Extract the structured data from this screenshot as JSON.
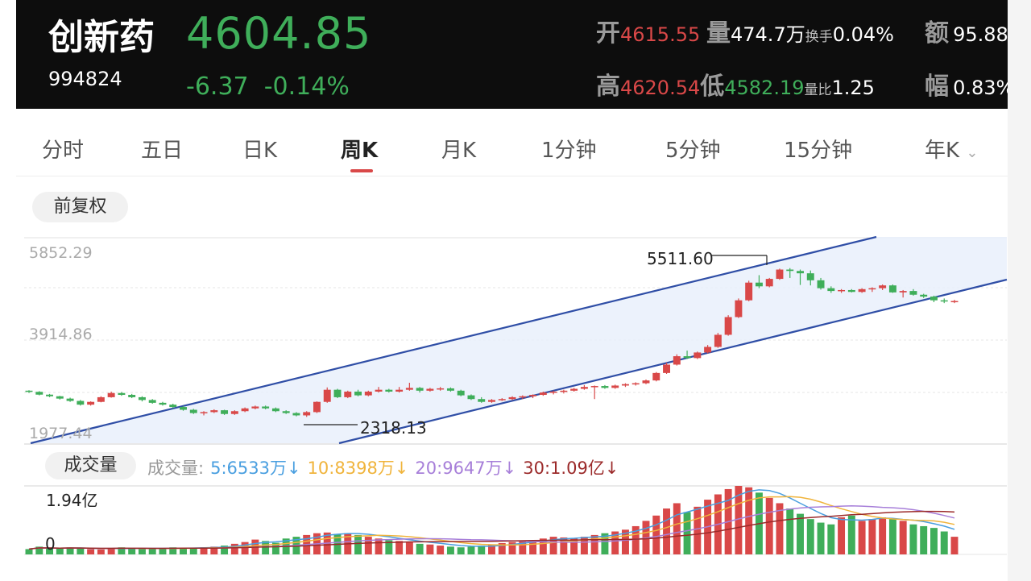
{
  "stock": {
    "name": "创新药",
    "code": "994824",
    "price": "4604.85",
    "change": "-6.37",
    "change_pct": "-0.14%"
  },
  "stats": {
    "open_label": "开",
    "open": "4615.55",
    "vol_label": "量",
    "vol": "474.7万",
    "turnover_label": "换手",
    "turnover": "0.04%",
    "amount_label": "额",
    "amount": "95.88",
    "high_label": "高",
    "high": "4620.54",
    "low_label": "低",
    "low": "4582.19",
    "vol_ratio_label": "量比",
    "vol_ratio": "1.25",
    "amplitude_label": "幅",
    "amplitude": "0.83%"
  },
  "tabs": [
    "分时",
    "五日",
    "日K",
    "周K",
    "月K",
    "1分钟",
    "5分钟",
    "15分钟",
    "年K"
  ],
  "active_tab": "周K",
  "adjust_button": "前复权",
  "volume_button": "成交量",
  "volume_legend": {
    "label": "成交量:",
    "ma5": "5:6533万↓",
    "ma10": "10:8398万↓",
    "ma20": "20:9647万↓",
    "ma30": "30:1.09亿↓"
  },
  "colors": {
    "up": "#d94848",
    "down": "#3fae5a",
    "channel": "#2f4ea6",
    "ma5": "#4a9fe0",
    "ma10": "#f0b43c",
    "ma20": "#a77fd9",
    "ma30": "#9b2a2a"
  },
  "chart_data": [
    {
      "type": "candlestick",
      "y_axis_labels": [
        "5852.29",
        "3914.86",
        "1977.44"
      ],
      "ylim": [
        1977.44,
        5852.29
      ],
      "annotations": [
        {
          "text": "5511.60",
          "kind": "period-high"
        },
        {
          "text": "2318.13",
          "kind": "period-low"
        }
      ],
      "overlay": "upward price channel (two parallel trend lines with shaded band)",
      "series": [
        {
          "name": "weekly",
          "ohlc_approx": [
            [
              2880,
              2890,
              2830,
              2855
            ],
            [
              2855,
              2870,
              2780,
              2795
            ],
            [
              2795,
              2810,
              2740,
              2760
            ],
            [
              2760,
              2770,
              2690,
              2710
            ],
            [
              2710,
              2730,
              2640,
              2660
            ],
            [
              2660,
              2680,
              2560,
              2580
            ],
            [
              2580,
              2650,
              2560,
              2640
            ],
            [
              2640,
              2760,
              2630,
              2740
            ],
            [
              2740,
              2860,
              2730,
              2830
            ],
            [
              2830,
              2850,
              2770,
              2790
            ],
            [
              2790,
              2810,
              2720,
              2740
            ],
            [
              2740,
              2760,
              2650,
              2680
            ],
            [
              2680,
              2700,
              2600,
              2620
            ],
            [
              2620,
              2640,
              2560,
              2580
            ],
            [
              2580,
              2600,
              2500,
              2530
            ],
            [
              2530,
              2550,
              2450,
              2470
            ],
            [
              2470,
              2490,
              2380,
              2400
            ],
            [
              2400,
              2440,
              2350,
              2420
            ],
            [
              2420,
              2480,
              2400,
              2460
            ],
            [
              2460,
              2470,
              2360,
              2380
            ],
            [
              2380,
              2460,
              2360,
              2440
            ],
            [
              2440,
              2520,
              2420,
              2500
            ],
            [
              2500,
              2560,
              2480,
              2540
            ],
            [
              2540,
              2560,
              2480,
              2500
            ],
            [
              2500,
              2520,
              2420,
              2440
            ],
            [
              2440,
              2460,
              2380,
              2400
            ],
            [
              2400,
              2420,
              2330,
              2350
            ],
            [
              2350,
              2440,
              2318,
              2420
            ],
            [
              2420,
              2650,
              2400,
              2640
            ],
            [
              2640,
              2950,
              2620,
              2900
            ],
            [
              2900,
              2920,
              2720,
              2740
            ],
            [
              2740,
              2880,
              2720,
              2860
            ],
            [
              2860,
              2900,
              2760,
              2780
            ],
            [
              2780,
              2880,
              2760,
              2860
            ],
            [
              2860,
              2960,
              2840,
              2900
            ],
            [
              2900,
              2920,
              2840,
              2860
            ],
            [
              2860,
              2960,
              2840,
              2900
            ],
            [
              2900,
              3050,
              2880,
              2940
            ],
            [
              2940,
              2960,
              2840,
              2880
            ],
            [
              2880,
              2940,
              2860,
              2920
            ],
            [
              2920,
              2960,
              2880,
              2930
            ],
            [
              2930,
              2950,
              2860,
              2880
            ],
            [
              2880,
              2900,
              2760,
              2780
            ],
            [
              2780,
              2800,
              2680,
              2700
            ],
            [
              2700,
              2740,
              2620,
              2640
            ],
            [
              2640,
              2700,
              2620,
              2680
            ],
            [
              2680,
              2720,
              2660,
              2700
            ],
            [
              2700,
              2760,
              2680,
              2740
            ],
            [
              2740,
              2780,
              2700,
              2760
            ],
            [
              2760,
              2800,
              2720,
              2790
            ],
            [
              2790,
              2860,
              2770,
              2840
            ],
            [
              2840,
              2880,
              2800,
              2860
            ],
            [
              2860,
              2900,
              2820,
              2880
            ],
            [
              2880,
              2940,
              2860,
              2920
            ],
            [
              2920,
              3000,
              2900,
              2960
            ],
            [
              2960,
              2990,
              2700,
              2980
            ],
            [
              2980,
              3000,
              2920,
              2940
            ],
            [
              2940,
              3010,
              2920,
              2990
            ],
            [
              2990,
              3040,
              2960,
              3020
            ],
            [
              3020,
              3060,
              2990,
              3040
            ],
            [
              3040,
              3120,
              3020,
              3100
            ],
            [
              3100,
              3280,
              3080,
              3260
            ],
            [
              3260,
              3480,
              3240,
              3440
            ],
            [
              3440,
              3660,
              3420,
              3620
            ],
            [
              3620,
              3740,
              3560,
              3580
            ],
            [
              3580,
              3720,
              3560,
              3700
            ],
            [
              3700,
              3860,
              3680,
              3820
            ],
            [
              3820,
              4120,
              3800,
              4080
            ],
            [
              4080,
              4500,
              4060,
              4460
            ],
            [
              4460,
              4860,
              4440,
              4820
            ],
            [
              4820,
              5240,
              4800,
              5200
            ],
            [
              5200,
              5360,
              5080,
              5120
            ],
            [
              5120,
              5300,
              5100,
              5280
            ],
            [
              5280,
              5500,
              5260,
              5480
            ],
            [
              5480,
              5511.6,
              5300,
              5450
            ],
            [
              5450,
              5480,
              5150,
              5400
            ],
            [
              5400,
              5460,
              5140,
              5250
            ],
            [
              5250,
              5300,
              5050,
              5080
            ],
            [
              5080,
              5120,
              4980,
              5020
            ],
            [
              5020,
              5060,
              4980,
              5040
            ],
            [
              5040,
              5060,
              4990,
              5000
            ],
            [
              5000,
              5080,
              4980,
              5060
            ],
            [
              5060,
              5100,
              5000,
              5080
            ],
            [
              5080,
              5160,
              5040,
              5140
            ],
            [
              5140,
              5160,
              4980,
              4990
            ],
            [
              4990,
              5040,
              4880,
              5020
            ],
            [
              5020,
              5060,
              4920,
              4940
            ],
            [
              4940,
              4960,
              4870,
              4900
            ],
            [
              4900,
              4920,
              4780,
              4820
            ],
            [
              4820,
              4860,
              4760,
              4800
            ],
            [
              4800,
              4830,
              4760,
              4805
            ]
          ]
        }
      ]
    },
    {
      "type": "bar",
      "title": "成交量",
      "y_axis_labels": [
        "1.94亿",
        "0"
      ],
      "ylim": [
        0,
        1.94
      ],
      "unit": "亿",
      "series": [
        {
          "name": "volume",
          "values_approx": [
            0.15,
            0.22,
            0.18,
            0.16,
            0.2,
            0.17,
            0.15,
            0.14,
            0.18,
            0.2,
            0.17,
            0.15,
            0.16,
            0.18,
            0.2,
            0.19,
            0.17,
            0.2,
            0.22,
            0.25,
            0.3,
            0.35,
            0.42,
            0.38,
            0.33,
            0.45,
            0.5,
            0.55,
            0.6,
            0.62,
            0.58,
            0.6,
            0.55,
            0.5,
            0.45,
            0.4,
            0.38,
            0.35,
            0.3,
            0.28,
            0.25,
            0.22,
            0.2,
            0.22,
            0.25,
            0.28,
            0.32,
            0.35,
            0.38,
            0.4,
            0.45,
            0.5,
            0.48,
            0.45,
            0.5,
            0.55,
            0.6,
            0.65,
            0.7,
            0.8,
            0.95,
            1.1,
            1.3,
            1.45,
            1.2,
            1.35,
            1.55,
            1.7,
            1.85,
            1.94,
            1.9,
            1.75,
            1.6,
            1.45,
            1.3,
            1.15,
            1.0,
            0.9,
            0.85,
            1.05,
            1.1,
            0.95,
            1.0,
            1.05,
            1.0,
            0.95,
            0.85,
            0.8,
            0.75,
            0.65,
            0.5
          ]
        }
      ]
    }
  ]
}
